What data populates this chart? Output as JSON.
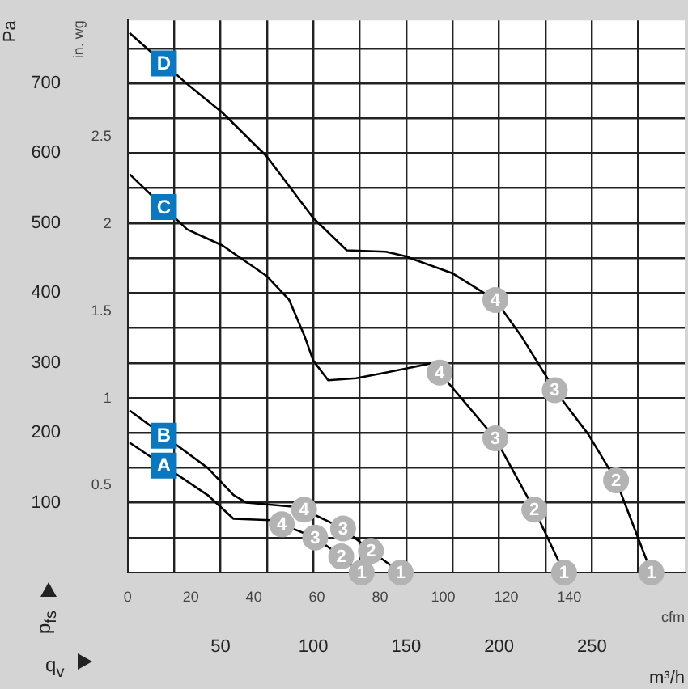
{
  "chart_data": {
    "type": "line",
    "ylabel": "Pa",
    "y2label": "in. wg",
    "xlabel": "m³/h",
    "x2label": "cfm",
    "xlim": [
      0,
      300
    ],
    "xticks": [
      {
        "value": 25,
        "label": null
      },
      50,
      {
        "value": 75,
        "label": null
      },
      100,
      {
        "value": 125,
        "label": null
      },
      150,
      {
        "value": 175,
        "label": null
      },
      200,
      {
        "value": 225,
        "label": null
      },
      250,
      {
        "value": 275,
        "label": null
      }
    ],
    "x2lim": [
      0,
      176.6
    ],
    "x2ticks": [
      0,
      20,
      40,
      60,
      80,
      100,
      120,
      140
    ],
    "ylim": [
      0,
      790
    ],
    "yticks": [
      {
        "value": 50,
        "label": null
      },
      100,
      {
        "value": 150,
        "label": null
      },
      200,
      {
        "value": 250,
        "label": null
      },
      300,
      {
        "value": 350,
        "label": null
      },
      400,
      {
        "value": 450,
        "label": null
      },
      500,
      {
        "value": 550,
        "label": null
      },
      600,
      {
        "value": 650,
        "label": null
      },
      700,
      {
        "value": 750,
        "label": null
      }
    ],
    "y2lim": [
      0,
      3.17
    ],
    "y2ticks": [
      0.5,
      1,
      1.5,
      2,
      2.5
    ],
    "grid": true,
    "legend": false,
    "line_style": "solid",
    "series": [
      {
        "name": "A",
        "color": "#000000",
        "x": [
          1,
          43,
          57,
          77,
          83,
          101,
          115,
          126
        ],
        "values": [
          186,
          111,
          77,
          75,
          69,
          50,
          23,
          0
        ]
      },
      {
        "name": "B",
        "color": "#000000",
        "x": [
          1,
          43,
          57,
          64,
          90,
          95,
          116,
          131,
          147
        ],
        "values": [
          232,
          150,
          111,
          100,
          94,
          90,
          63,
          31,
          0
        ]
      },
      {
        "name": "C",
        "color": "#000000",
        "x": [
          1,
          32,
          51,
          75,
          87,
          95,
          100,
          108,
          123,
          139,
          163,
          168,
          198,
          219,
          235
        ],
        "values": [
          570,
          491,
          468,
          424,
          390,
          340,
          303,
          275,
          278,
          286,
          299,
          286,
          192,
          90,
          0
        ]
      },
      {
        "name": "D",
        "color": "#000000",
        "x": [
          1,
          32,
          51,
          75,
          100,
          118,
          139,
          149,
          175,
          198,
          212,
          230,
          248,
          263,
          282
        ],
        "values": [
          772,
          699,
          658,
          595,
          507,
          461,
          459,
          453,
          428,
          390,
          338,
          261,
          198,
          132,
          0
        ]
      }
    ],
    "annotations": [
      "p$_{fs}$",
      "q$_{v}$",
      {
        "text": "1",
        "x": 126,
        "y": 0
      },
      {
        "text": "2",
        "x": 115,
        "y": 23
      },
      {
        "text": "3",
        "x": 101,
        "y": 50
      },
      {
        "text": "4",
        "x": 83,
        "y": 69
      },
      {
        "text": "1",
        "x": 147,
        "y": 0
      },
      {
        "text": "2",
        "x": 131,
        "y": 31
      },
      {
        "text": "3",
        "x": 116,
        "y": 63
      },
      {
        "text": "4",
        "x": 95,
        "y": 90
      },
      {
        "text": "1",
        "x": 235,
        "y": 0
      },
      {
        "text": "2",
        "x": 219,
        "y": 90
      },
      {
        "text": "3",
        "x": 198,
        "y": 192
      },
      {
        "text": "4",
        "x": 168,
        "y": 286
      },
      {
        "text": "1",
        "x": 282,
        "y": 0
      },
      {
        "text": "2",
        "x": 263,
        "y": 132
      },
      {
        "text": "3",
        "x": 230,
        "y": 261
      },
      {
        "text": "4",
        "x": 198,
        "y": 390
      }
    ]
  }
}
